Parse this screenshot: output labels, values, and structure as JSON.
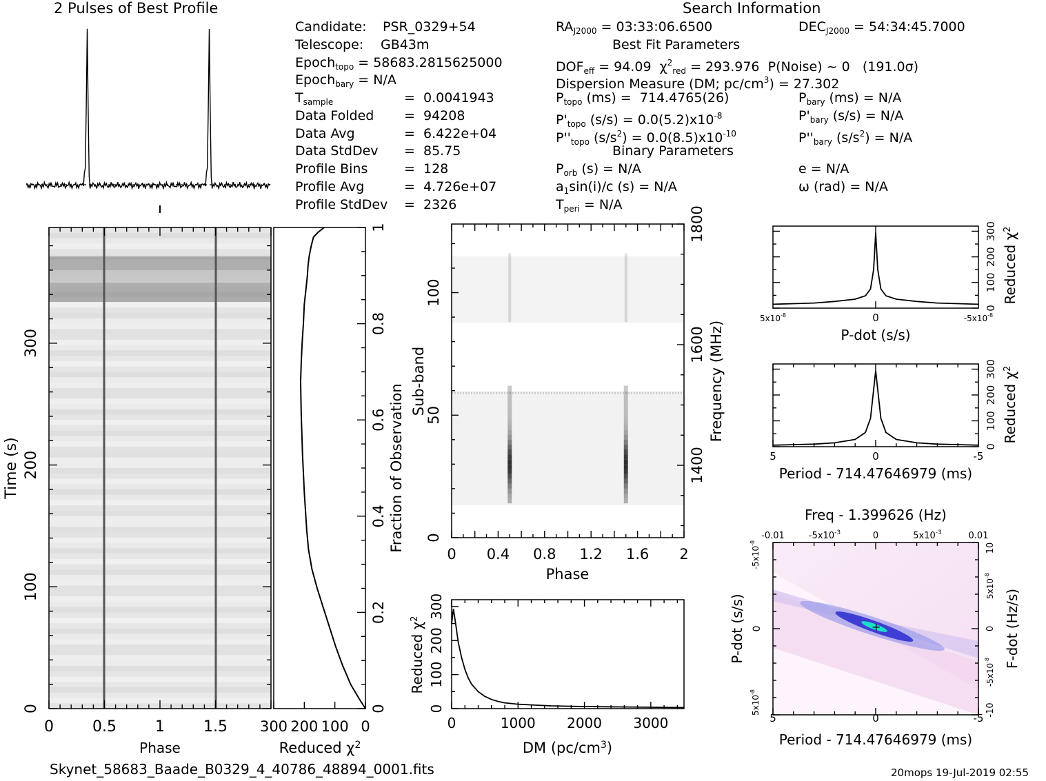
{
  "profile": {
    "title": "2 Pulses of Best Profile"
  },
  "info": {
    "title": "Search Information",
    "candidate_label": "Candidate:",
    "candidate": "PSR_0329+54",
    "telescope_label": "Telescope:",
    "telescope": "GB43m",
    "epoch_topo": "58683.2815625000",
    "epoch_bary": "N/A",
    "t_sample": "0.0041943",
    "data_folded_label": "Data Folded",
    "data_folded": "94208",
    "data_avg_label": "Data Avg",
    "data_avg": "6.422e+04",
    "data_std_label": "Data StdDev",
    "data_std": "85.75",
    "prof_bins_label": "Profile Bins",
    "prof_bins": "128",
    "prof_avg_label": "Profile Avg",
    "prof_avg": "4.726e+07",
    "prof_std_label": "Profile StdDev",
    "prof_std": "2326",
    "ra": "03:33:06.6500",
    "dec": "54:34:45.7000",
    "best_fit_title": "Best Fit Parameters",
    "dof_eff": "94.09",
    "chi2_red": "293.976",
    "p_noise": "P(Noise) ~ 0",
    "sigma": "(191.0σ)",
    "dm_label": "Dispersion Measure (DM; pc/cm",
    "dm_value": "27.302",
    "p_topo": "714.4765(26)",
    "pd_topo": "0.0(5.2)x10",
    "pd_topo_exp": "-8",
    "pdd_topo": "0.0(8.5)x10",
    "pdd_topo_exp": "-10",
    "p_bary": "N/A",
    "pd_bary": "N/A",
    "pdd_bary": "N/A",
    "binary_title": "Binary Parameters",
    "p_orb": "N/A",
    "a1sini": "N/A",
    "t_peri": "N/A",
    "ecc": "N/A",
    "omega": "N/A"
  },
  "footer": {
    "filename": "Skynet_58683_Baade_B0329_4_40786_48894_0001.fits",
    "stamp": "20mops  19-Jul-2019 02:55"
  },
  "colors": {
    "ink": "#000000",
    "pd_light": "#f4d8f0",
    "pd_mid": "#2a2ad0",
    "pd_peak": "#19e0c8"
  },
  "chart_data": [
    {
      "id": "profile",
      "type": "line",
      "title": "2 Pulses of Best Profile",
      "x": [
        0,
        2
      ],
      "pulse_phases": [
        0.5,
        1.5
      ],
      "peak_to_baseline_ratio": 120
    },
    {
      "id": "time_phase",
      "type": "heatmap",
      "xlabel": "Phase",
      "ylabel": "Time (s)",
      "xlim": [
        0,
        2
      ],
      "ylim": [
        0,
        395
      ],
      "xticks": [
        "0",
        "0.5",
        "1",
        "1.5"
      ],
      "yticks": [
        "0",
        "100",
        "200",
        "300"
      ],
      "pulse_phases": [
        0.5,
        1.5
      ],
      "dark_band_time_s": [
        335,
        372
      ]
    },
    {
      "id": "time_chi2",
      "type": "line",
      "xlabel": "Reduced χ²",
      "ylabel": "Fraction of Observation",
      "xticks": [
        "300",
        "200",
        "100",
        "0"
      ],
      "yticks": [
        "0",
        "0.2",
        "0.4",
        "0.6",
        "0.8",
        "1"
      ],
      "xlim": [
        0,
        300
      ],
      "ylim": [
        0,
        1
      ],
      "chi2": [
        0,
        20,
        48,
        75,
        98,
        118,
        138,
        158,
        175,
        186,
        192,
        196,
        200,
        203,
        206,
        208,
        210,
        211,
        212,
        210,
        207,
        203,
        200,
        195,
        190,
        188,
        184,
        178,
        170,
        155,
        135
      ],
      "fraction": [
        0,
        0.02,
        0.05,
        0.09,
        0.13,
        0.17,
        0.21,
        0.25,
        0.29,
        0.33,
        0.37,
        0.41,
        0.45,
        0.49,
        0.53,
        0.57,
        0.61,
        0.64,
        0.68,
        0.72,
        0.76,
        0.8,
        0.84,
        0.87,
        0.9,
        0.92,
        0.94,
        0.96,
        0.98,
        0.99,
        1.0
      ]
    },
    {
      "id": "subband_phase",
      "type": "heatmap",
      "xlabel": "Phase",
      "ylabel": "Sub-band",
      "y2label": "Frequency (MHz)",
      "xlim": [
        0,
        2
      ],
      "ylim": [
        0,
        128
      ],
      "xticks": [
        "0",
        "0.4",
        "0.8",
        "1.2",
        "1.6",
        "2"
      ],
      "yticks": [
        "0",
        "50",
        "100"
      ],
      "y2ticks": [
        "1400",
        "1600",
        "1800"
      ],
      "y2lim": [
        1280,
        1800
      ],
      "pulse_phases": [
        0.5,
        1.5
      ],
      "active_subbands": [
        [
          14,
          60
        ],
        [
          88,
          115
        ]
      ]
    },
    {
      "id": "dm_chi2",
      "type": "line",
      "xlabel": "DM (pc/cm³)",
      "ylabel": "Reduced χ²",
      "xlim": [
        0,
        3500
      ],
      "ylim": [
        0,
        320
      ],
      "xticks": [
        "0",
        "1000",
        "2000",
        "3000"
      ],
      "yticks": [
        "0",
        "100",
        "200",
        "300"
      ],
      "x": [
        0,
        27,
        60,
        100,
        150,
        200,
        250,
        300,
        400,
        500,
        600,
        700,
        800,
        1000,
        1200,
        1500,
        2000,
        2500,
        3000,
        3500
      ],
      "y": [
        250,
        293,
        250,
        195,
        150,
        115,
        90,
        72,
        50,
        36,
        27,
        21,
        17,
        13,
        11,
        8,
        6,
        5,
        4,
        3
      ]
    },
    {
      "id": "pdot_chi2",
      "type": "line",
      "xlabel": "P-dot (s/s)",
      "ylabel": "Reduced χ²",
      "xlim": [
        5e-08,
        -5e-08
      ],
      "ylim": [
        0,
        320
      ],
      "xticks": [
        "5x10",
        "0",
        "-5x10"
      ],
      "xtick_exp": "-8",
      "yticks": [
        "0",
        "100",
        "200",
        "300"
      ],
      "x": [
        5e-08,
        3e-08,
        2e-08,
        1e-08,
        5e-09,
        2.5e-09,
        1e-09,
        0,
        -1e-09,
        -2.5e-09,
        -5e-09,
        -1e-08,
        -2e-08,
        -3e-08,
        -5e-08
      ],
      "y": [
        15,
        20,
        26,
        35,
        48,
        75,
        150,
        294,
        150,
        75,
        48,
        35,
        26,
        20,
        15
      ]
    },
    {
      "id": "period_chi2",
      "type": "line",
      "xlabel": "Period - 714.47646979 (ms)",
      "ylabel": "Reduced χ²",
      "xlim": [
        5,
        -5
      ],
      "ylim": [
        0,
        320
      ],
      "xticks": [
        "5",
        "0",
        "-5"
      ],
      "yticks": [
        "0",
        "100",
        "200",
        "300"
      ],
      "x": [
        5,
        3,
        2,
        1,
        0.5,
        0.25,
        0.1,
        0,
        -0.1,
        -0.25,
        -0.5,
        -1,
        -2,
        -3,
        -5
      ],
      "y": [
        6,
        10,
        15,
        28,
        55,
        110,
        220,
        294,
        220,
        110,
        55,
        28,
        15,
        10,
        6
      ]
    },
    {
      "id": "p_pdot",
      "type": "heatmap",
      "title": "Freq - 1.399626 (Hz)",
      "xlabel": "Period - 714.47646979 (ms)",
      "ylabel": "P-dot (s/s)",
      "x2label": "Freq - 1.399626 (Hz)",
      "y2label": "F-dot (Hz/s)",
      "xlim": [
        5,
        -5
      ],
      "ylim": [
        5e-08,
        -5e-08
      ],
      "xticks": [
        "5",
        "0",
        "-5"
      ],
      "yticks": [
        "-5x10",
        "0",
        "5x10"
      ],
      "ytick_exp": "-8",
      "x2ticks": [
        "-0.01",
        "-5x10",
        "0",
        "5x10",
        "0.01"
      ],
      "x2tick_exp": "-3",
      "y2ticks": [
        "10",
        "5x10",
        "0",
        "-5x10",
        "-10"
      ],
      "y2tick_exp": "-8",
      "best_fit": [
        0,
        0
      ]
    }
  ]
}
